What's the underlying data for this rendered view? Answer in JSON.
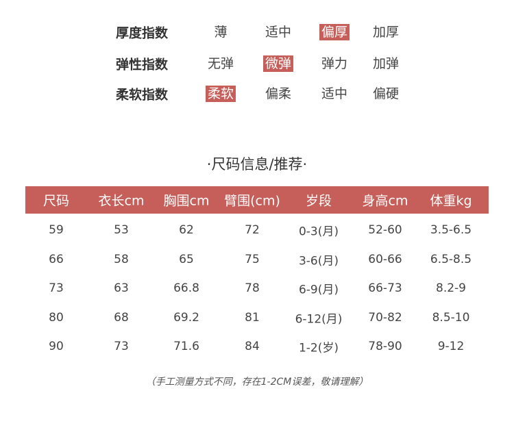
{
  "indices": [
    {
      "label": "厚度指数",
      "options": [
        "薄",
        "适中",
        "偏厚",
        "加厚"
      ],
      "selected": 2
    },
    {
      "label": "弹性指数",
      "options": [
        "无弹",
        "微弹",
        "弹力",
        "加弹"
      ],
      "selected": 1
    },
    {
      "label": "柔软指数",
      "options": [
        "柔软",
        "偏柔",
        "适中",
        "偏硬"
      ],
      "selected": 0
    }
  ],
  "size_title": "·尺码信息/推荐·",
  "table": {
    "headers": [
      "尺码",
      "衣长cm",
      "胸围cm",
      "臂围(cm)",
      "岁段",
      "身高cm",
      "体重kg"
    ],
    "rows": [
      [
        "59",
        "53",
        "62",
        "72",
        "0-3(月)",
        "52-60",
        "3.5-6.5"
      ],
      [
        "66",
        "58",
        "65",
        "75",
        "3-6(月)",
        "60-66",
        "6.5-8.5"
      ],
      [
        "73",
        "63",
        "66.8",
        "78",
        "6-9(月)",
        "66-73",
        "8.2-9"
      ],
      [
        "80",
        "68",
        "69.2",
        "81",
        "6-12(月)",
        "70-82",
        "8.5-10"
      ],
      [
        "90",
        "73",
        "71.6",
        "84",
        "1-2(岁)",
        "78-90",
        "9-12"
      ]
    ]
  },
  "note": "（手工测量方式不同，存在1-2CM误差，敬请理解）",
  "colors": {
    "accent": "#c65f5a"
  }
}
